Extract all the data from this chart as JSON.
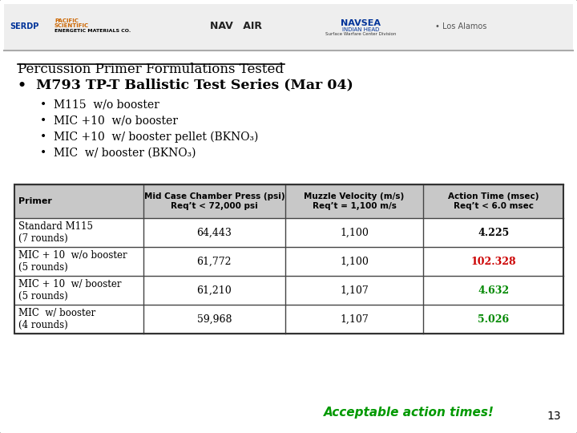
{
  "title": "Percussion Primer Formulations Tested",
  "bullet1": "M793 TP-T Ballistic Test Series (Mar 04)",
  "sub_bullets": [
    "M115  w/o booster",
    "MIC +10  w/o booster",
    "MIC +10  w/ booster pellet (BKNO₃)",
    "MIC  w/ booster (BKNO₃)"
  ],
  "col_headers": [
    "Primer",
    "Mid Case Chamber Press (psi)\nReq’t < 72,000 psi",
    "Muzzle Velocity (m/s)\nReq’t = 1,100 m/s",
    "Action Time (msec)\nReq’t < 6.0 msec"
  ],
  "table_rows": [
    [
      "Standard M115\n(7 rounds)",
      "64,443",
      "1,100",
      "4.225"
    ],
    [
      "MIC + 10  w/o booster\n(5 rounds)",
      "61,772",
      "1,100",
      "102.328"
    ],
    [
      "MIC + 10  w/ booster\n(5 rounds)",
      "61,210",
      "1,107",
      "4.632"
    ],
    [
      "MIC  w/ booster\n(4 rounds)",
      "59,968",
      "1,107",
      "5.026"
    ]
  ],
  "action_time_colors": [
    "#000000",
    "#cc0000",
    "#008800",
    "#008800"
  ],
  "footer_text": "Acceptable action times!",
  "footer_color": "#009900",
  "page_number": "13",
  "bg_color": "#ffffff",
  "table_header_bg": "#c8c8c8",
  "border_color": "#333333"
}
